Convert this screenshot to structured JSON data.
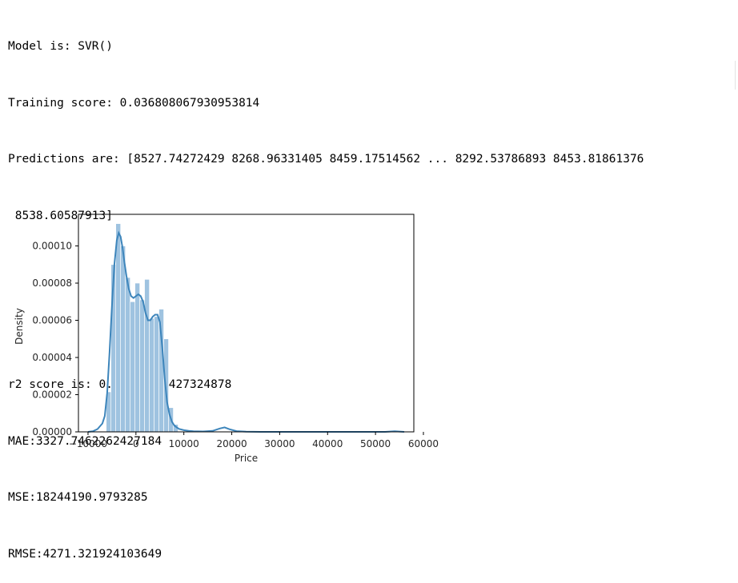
{
  "output": {
    "lines": [
      "Model is: SVR()",
      "Training score: 0.036808067930953814",
      "Predictions are: [8527.74272429 8268.96331405 8459.17514562 ... 8292.53786893 8453.81861376",
      " 8538.60587913]",
      "",
      "",
      "r2 score is: 0.05252926427324878",
      "MAE:3327.7462262427184",
      "MSE:18244190.9793285",
      "RMSE:4271.321924103649"
    ]
  },
  "chart_data": {
    "type": "histogram",
    "xlabel": "Price",
    "ylabel": "Density",
    "xlim": [
      -12000,
      58000
    ],
    "ylim": [
      0,
      0.000117
    ],
    "xticks": [
      -10000,
      0,
      10000,
      20000,
      30000,
      40000,
      50000,
      60000
    ],
    "xtick_labels": [
      "−10000",
      "0",
      "10000",
      "20000",
      "30000",
      "40000",
      "50000",
      "60000"
    ],
    "yticks": [
      0,
      2e-05,
      4e-05,
      6e-05,
      8e-05,
      0.0001
    ],
    "ytick_labels": [
      "0.00000",
      "0.00002",
      "0.00004",
      "0.00006",
      "0.00008",
      "0.00010"
    ],
    "bar_color": "#9fc3e0",
    "line_color": "#3d85bb",
    "bins": [
      {
        "x0": -6200,
        "x1": -5200,
        "density": 2.15e-05
      },
      {
        "x0": -5200,
        "x1": -4200,
        "density": 9e-05
      },
      {
        "x0": -4200,
        "x1": -3200,
        "density": 0.000112
      },
      {
        "x0": -3200,
        "x1": -2200,
        "density": 0.0001
      },
      {
        "x0": -2200,
        "x1": -1200,
        "density": 8.3e-05
      },
      {
        "x0": -1200,
        "x1": -200,
        "density": 7e-05
      },
      {
        "x0": -200,
        "x1": 800,
        "density": 8e-05
      },
      {
        "x0": 800,
        "x1": 1800,
        "density": 7.1e-05
      },
      {
        "x0": 1800,
        "x1": 2800,
        "density": 8.2e-05
      },
      {
        "x0": 2800,
        "x1": 3800,
        "density": 6.1e-05
      },
      {
        "x0": 3800,
        "x1": 4800,
        "density": 6.2e-05
      },
      {
        "x0": 4800,
        "x1": 5800,
        "density": 6.6e-05
      },
      {
        "x0": 5800,
        "x1": 6800,
        "density": 5e-05
      },
      {
        "x0": 6800,
        "x1": 7800,
        "density": 1.3e-05
      },
      {
        "x0": 7800,
        "x1": 8800,
        "density": 4e-06
      }
    ],
    "kde": {
      "x": [
        -10000,
        -9000,
        -8000,
        -7000,
        -6500,
        -6000,
        -5500,
        -5000,
        -4500,
        -4000,
        -3600,
        -3200,
        -2800,
        -2400,
        -2000,
        -1500,
        -1000,
        -500,
        0,
        500,
        1000,
        1500,
        2000,
        2500,
        3000,
        3500,
        4000,
        4500,
        5000,
        5500,
        6000,
        6500,
        7000,
        7500,
        8000,
        8500,
        9000,
        10000,
        11000,
        12000,
        14000,
        16000,
        17500,
        18500,
        19500,
        21000,
        23000,
        26000,
        30000,
        35000,
        40000,
        45000,
        50000,
        52000,
        54000,
        56000
      ],
      "y": [
        0,
        3e-07,
        1.5e-06,
        4.5e-06,
        8.5e-06,
        2.1e-05,
        4.3e-05,
        6.8e-05,
        9e-05,
        0.000103,
        0.000107,
        0.000105,
        9.9e-05,
        9.1e-05,
        8.4e-05,
        7.7e-05,
        7.3e-05,
        7.2e-05,
        7.3e-05,
        7.4e-05,
        7.3e-05,
        7e-05,
        6.4e-05,
        6e-05,
        6e-05,
        6.2e-05,
        6.3e-05,
        6.3e-05,
        5.9e-05,
        4.5e-05,
        2.9e-05,
        1.6e-05,
        9.5e-06,
        5.5e-06,
        3.5e-06,
        2.4e-06,
        1.6e-06,
        9e-07,
        5e-07,
        3e-07,
        2e-07,
        5e-07,
        1.8e-06,
        2.4e-06,
        1.4e-06,
        4e-07,
        1e-07,
        0,
        0,
        0,
        0,
        0,
        0,
        0,
        3e-07,
        0
      ]
    }
  }
}
